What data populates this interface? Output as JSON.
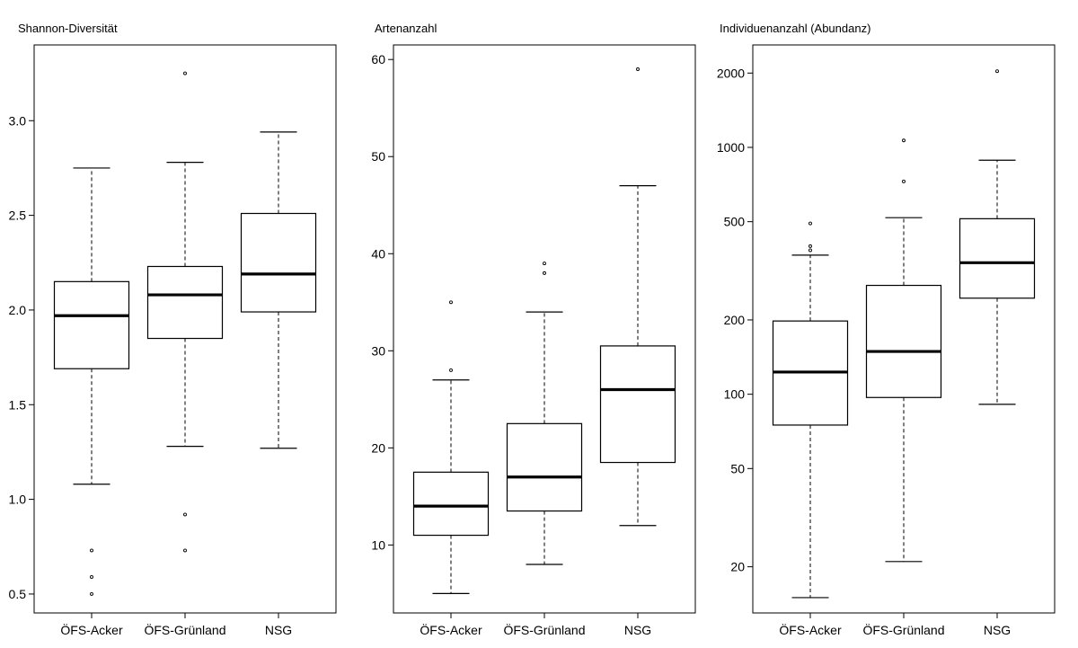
{
  "chart_data": [
    {
      "type": "box",
      "title": "Shannon-Diversität",
      "categories": [
        "ÖFS-Acker",
        "ÖFS-Grünland",
        "NSG"
      ],
      "yscale": "linear",
      "ylim": [
        0.4,
        3.4
      ],
      "yticks": [
        0.5,
        1.0,
        1.5,
        2.0,
        2.5,
        3.0
      ],
      "yticklabels": [
        "0.5",
        "1.0",
        "1.5",
        "2.0",
        "2.5",
        "3.0"
      ],
      "boxes": [
        {
          "whisker_low": 1.08,
          "q1": 1.69,
          "median": 1.97,
          "q3": 2.15,
          "whisker_high": 2.75,
          "outliers": [
            0.73,
            0.59,
            0.5
          ]
        },
        {
          "whisker_low": 1.28,
          "q1": 1.85,
          "median": 2.08,
          "q3": 2.23,
          "whisker_high": 2.78,
          "outliers": [
            3.25,
            0.92,
            0.73
          ]
        },
        {
          "whisker_low": 1.27,
          "q1": 1.99,
          "median": 2.19,
          "q3": 2.51,
          "whisker_high": 2.94,
          "outliers": []
        }
      ]
    },
    {
      "type": "box",
      "title": "Artenanzahl",
      "categories": [
        "ÖFS-Acker",
        "ÖFS-Grünland",
        "NSG"
      ],
      "yscale": "linear",
      "ylim": [
        3,
        61.5
      ],
      "yticks": [
        10,
        20,
        30,
        40,
        50,
        60
      ],
      "yticklabels": [
        "10",
        "20",
        "30",
        "40",
        "50",
        "60"
      ],
      "boxes": [
        {
          "whisker_low": 5,
          "q1": 11,
          "median": 14,
          "q3": 17.5,
          "whisker_high": 27,
          "outliers": [
            35,
            28
          ]
        },
        {
          "whisker_low": 8,
          "q1": 13.5,
          "median": 17,
          "q3": 22.5,
          "whisker_high": 34,
          "outliers": [
            39,
            38
          ]
        },
        {
          "whisker_low": 12,
          "q1": 18.5,
          "median": 26,
          "q3": 30.5,
          "whisker_high": 47,
          "outliers": [
            59
          ]
        }
      ]
    },
    {
      "type": "box",
      "title": "Individuenanzahl (Abundanz)",
      "categories": [
        "ÖFS-Acker",
        "ÖFS-Grünland",
        "NSG"
      ],
      "yscale": "log",
      "ylim": [
        13,
        2600
      ],
      "yticks": [
        20,
        50,
        100,
        200,
        500,
        1000,
        2000
      ],
      "yticklabels": [
        "20",
        "50",
        "100",
        "200",
        "500",
        "1000",
        "2000"
      ],
      "boxes": [
        {
          "whisker_low": 15,
          "q1": 75,
          "median": 123,
          "q3": 198,
          "whisker_high": 366,
          "outliers": [
            492,
            398,
            383
          ]
        },
        {
          "whisker_low": 21,
          "q1": 97,
          "median": 149,
          "q3": 276,
          "whisker_high": 519,
          "outliers": [
            1067,
            728
          ]
        },
        {
          "whisker_low": 91,
          "q1": 245,
          "median": 341,
          "q3": 514,
          "whisker_high": 887,
          "outliers": [
            2035
          ]
        }
      ]
    }
  ]
}
